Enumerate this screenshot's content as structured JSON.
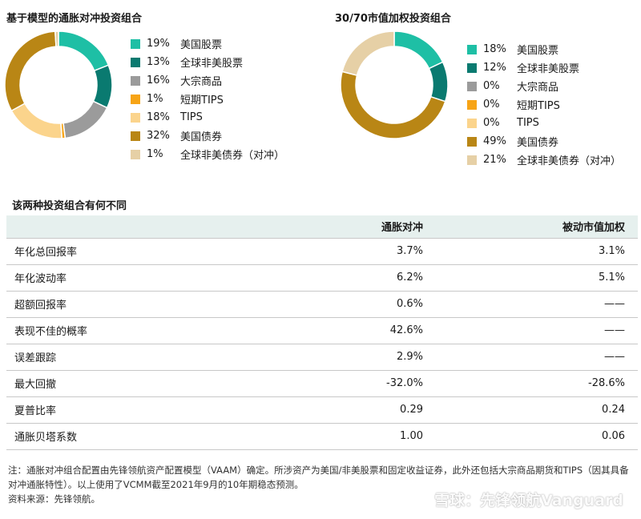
{
  "chart_data": [
    {
      "type": "pie",
      "title": "基于模型的通胀对冲投资组合",
      "slices": [
        {
          "pct": "19%",
          "label": "美国股票",
          "value": 19,
          "color": "#1ebfa5"
        },
        {
          "pct": "13%",
          "label": "全球非美股票",
          "value": 13,
          "color": "#0a7a70"
        },
        {
          "pct": "16%",
          "label": "大宗商品",
          "value": 16,
          "color": "#9b9b9b"
        },
        {
          "pct": "1%",
          "label": "短期TIPS",
          "value": 1,
          "color": "#f7a416"
        },
        {
          "pct": "18%",
          "label": "TIPS",
          "value": 18,
          "color": "#fbd48c"
        },
        {
          "pct": "32%",
          "label": "美国债券",
          "value": 32,
          "color": "#b98615"
        },
        {
          "pct": "1%",
          "label": "全球非美债券（对冲）",
          "value": 1,
          "color": "#e6d0a6"
        }
      ]
    },
    {
      "type": "pie",
      "title": "30/70市值加权投资组合",
      "slices": [
        {
          "pct": "18%",
          "label": "美国股票",
          "value": 18,
          "color": "#1ebfa5"
        },
        {
          "pct": "12%",
          "label": "全球非美股票",
          "value": 12,
          "color": "#0a7a70"
        },
        {
          "pct": "0%",
          "label": "大宗商品",
          "value": 0,
          "color": "#9b9b9b"
        },
        {
          "pct": "0%",
          "label": "短期TIPS",
          "value": 0,
          "color": "#f7a416"
        },
        {
          "pct": "0%",
          "label": "TIPS",
          "value": 0,
          "color": "#fbd48c"
        },
        {
          "pct": "49%",
          "label": "美国债券",
          "value": 49,
          "color": "#b98615"
        },
        {
          "pct": "21%",
          "label": "全球非美债券（对冲）",
          "value": 21,
          "color": "#e6d0a6"
        }
      ]
    },
    {
      "type": "table",
      "title": "该两种投资组合有何不同",
      "columns": [
        "",
        "通胀对冲",
        "被动市值加权"
      ],
      "rows": [
        [
          "年化总回报率",
          "3.7%",
          "3.1%"
        ],
        [
          "年化波动率",
          "6.2%",
          "5.1%"
        ],
        [
          "超额回报率",
          "0.6%",
          "——"
        ],
        [
          "表现不佳的概率",
          "42.6%",
          "——"
        ],
        [
          "误差跟踪",
          "2.9%",
          "——"
        ],
        [
          "最大回撤",
          "-32.0%",
          "-28.6%"
        ],
        [
          "夏普比率",
          "0.29",
          "0.24"
        ],
        [
          "通胀贝塔系数",
          "1.00",
          "0.06"
        ]
      ]
    }
  ],
  "footnote": "注：通胀对冲组合配置由先锋领航资产配置模型（VAAM）确定。所涉资产为美国/非美股票和固定收益证券，此外还包括大宗商品期货和TIPS（因其具备对冲通胀特性）。以上使用了VCMM截至2021年9月的10年期稳态预测。",
  "source": "资料来源：先锋领航。",
  "watermark": "雪球：先锋领航Vanguard"
}
